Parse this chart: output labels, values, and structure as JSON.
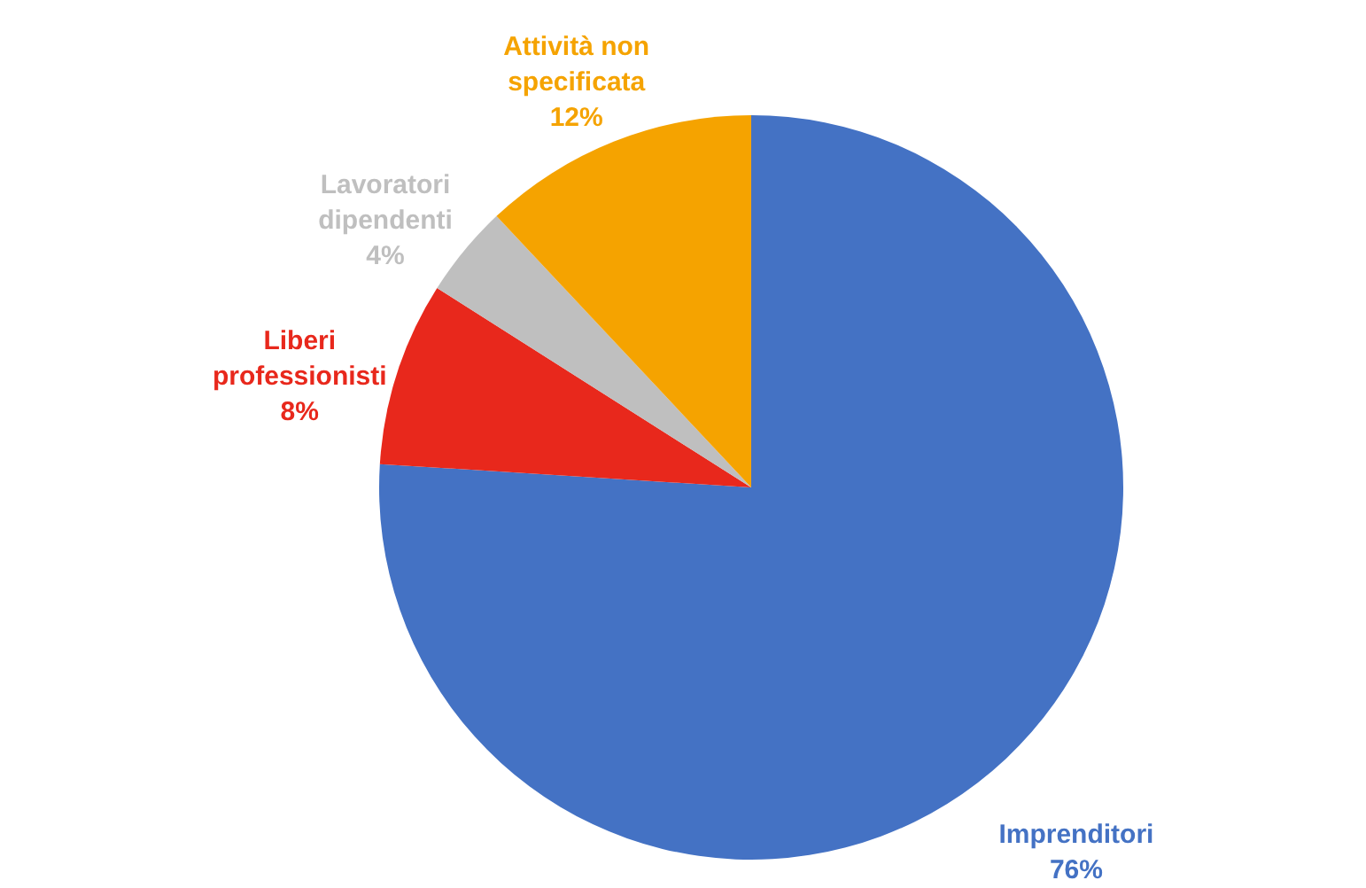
{
  "chart_data": {
    "type": "pie",
    "categories": [
      "Imprenditori",
      "Liberi professionisti",
      "Lavoratori dipendenti",
      "Attività non specificata"
    ],
    "values": [
      76,
      8,
      4,
      12
    ],
    "colors": [
      "#4472c4",
      "#e8281c",
      "#bfbfbf",
      "#f5a300"
    ],
    "value_labels": [
      "76%",
      "8%",
      "4%",
      "12%"
    ]
  }
}
